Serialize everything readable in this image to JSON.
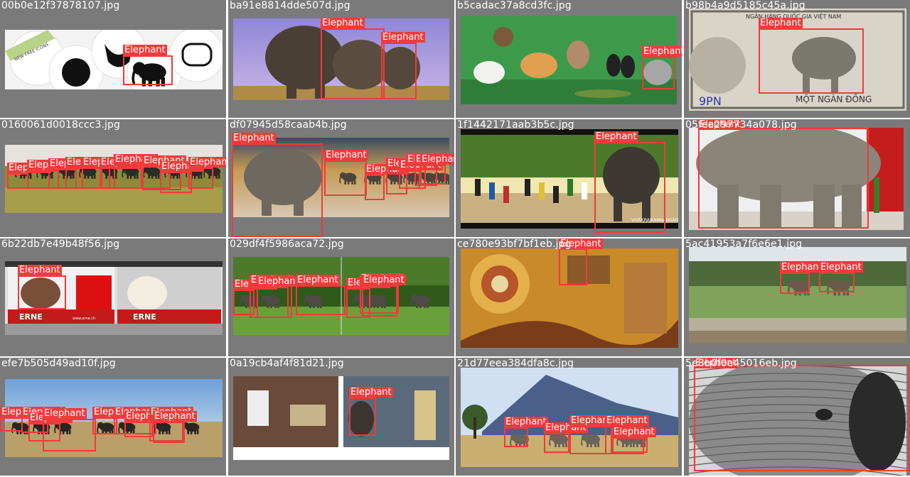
{
  "grid": {
    "tiles": [
      {
        "filename": "00b0e12f37878107.jpg",
        "theme": "icons",
        "banner_text": "NEW FREE ICONS",
        "detections": [
          {
            "label": "Elephant"
          }
        ]
      },
      {
        "filename": "ba91e8814dde507d.jpg",
        "theme": "savanna-sky",
        "detections": [
          {
            "label": "Elephant"
          },
          {
            "label": "Elephant"
          }
        ]
      },
      {
        "filename": "b5cadac37a8cd3fc.jpg",
        "theme": "toy-animals",
        "detections": [
          {
            "label": "Elephant"
          }
        ]
      },
      {
        "filename": "b98b4a9d5185c45a.jpg",
        "theme": "banknote",
        "note_top": "NGÂN HÀNG QUỐC GIA VIỆT NAM",
        "note_bottom": "MỘT NGÀN ĐỒNG",
        "note_serial": "9PN",
        "detections": [
          {
            "label": "Elephant"
          }
        ]
      },
      {
        "filename": "0160061d0018ccc3.jpg",
        "theme": "grassland-herd",
        "detections": [
          {
            "label": "Elephant"
          },
          {
            "label": "Elephant"
          },
          {
            "label": "Elephant"
          },
          {
            "label": "Elephant"
          },
          {
            "label": "Elephant"
          },
          {
            "label": "Elephant"
          },
          {
            "label": "Elephant"
          },
          {
            "label": "Elephant"
          },
          {
            "label": "Elephant"
          },
          {
            "label": "Elephant"
          }
        ]
      },
      {
        "filename": "df07945d58caab4b.jpg",
        "theme": "dust-herd",
        "detections": [
          {
            "label": "Elephant"
          },
          {
            "label": "Elephant"
          },
          {
            "label": "Elephant"
          },
          {
            "label": "Elephant"
          },
          {
            "label": "Elephant"
          },
          {
            "label": "Elephant"
          },
          {
            "label": "Elephant"
          },
          {
            "label": "Elephant"
          }
        ]
      },
      {
        "filename": "1f1442171aab3b5c.jpg",
        "theme": "street-procession",
        "watermark": "VIVEKRAJKANNANGAD",
        "detections": [
          {
            "label": "Elephant"
          }
        ]
      },
      {
        "filename": "05fea297734a078.jpg",
        "theme": "room-elephant",
        "detections": [
          {
            "label": "Elephant"
          }
        ]
      },
      {
        "filename": "6b22db7e49b48f56.jpg",
        "theme": "billboard",
        "sign_text": "ERNE",
        "sign_url": "www.erne.ch",
        "detections": [
          {
            "label": "Elephant"
          }
        ]
      },
      {
        "filename": "029df4f5986aca72.jpg",
        "theme": "green-field",
        "detections": [
          {
            "label": "Elephant"
          },
          {
            "label": "Elephant"
          },
          {
            "label": "Elephant"
          },
          {
            "label": "Elephant"
          },
          {
            "label": "Elephant"
          },
          {
            "label": "Elephant"
          },
          {
            "label": "Elephant"
          }
        ]
      },
      {
        "filename": "ce780e93bf7bf1eb.jpg",
        "theme": "painting",
        "detections": [
          {
            "label": "Elephant"
          }
        ]
      },
      {
        "filename": "5ac41953a7f6e6e1.jpg",
        "theme": "riverbank",
        "detections": [
          {
            "label": "Elephant"
          },
          {
            "label": "Elephant"
          }
        ]
      },
      {
        "filename": "efe7b505d49ad10f.jpg",
        "theme": "blue-sky-herd",
        "detections": [
          {
            "label": "Elephant"
          },
          {
            "label": "Elephant"
          },
          {
            "label": "Elephant"
          },
          {
            "label": "Elephant"
          },
          {
            "label": "Elephant"
          },
          {
            "label": "Elephant"
          },
          {
            "label": "Elephant"
          },
          {
            "label": "Elephant"
          },
          {
            "label": "Elephant"
          }
        ]
      },
      {
        "filename": "0a19cb4af4f81d21.jpg",
        "theme": "workshop",
        "detections": [
          {
            "label": "Elephant"
          }
        ]
      },
      {
        "filename": "21d77eea384dfa8c.jpg",
        "theme": "mountain-savanna",
        "detections": [
          {
            "label": "Elephant"
          },
          {
            "label": "Elephant"
          },
          {
            "label": "Elephant"
          },
          {
            "label": "Elephant"
          },
          {
            "label": "Elephant"
          }
        ]
      },
      {
        "filename": "5e8b0f0e45016eb.jpg",
        "theme": "closeup-bw",
        "detections": [
          {
            "label": "Elephant"
          }
        ]
      }
    ]
  },
  "colors": {
    "cell_bg": "#7a7a7a",
    "box": "#ef3b3b",
    "label_text": "#ffffff",
    "filename_text": "#ffffff"
  }
}
